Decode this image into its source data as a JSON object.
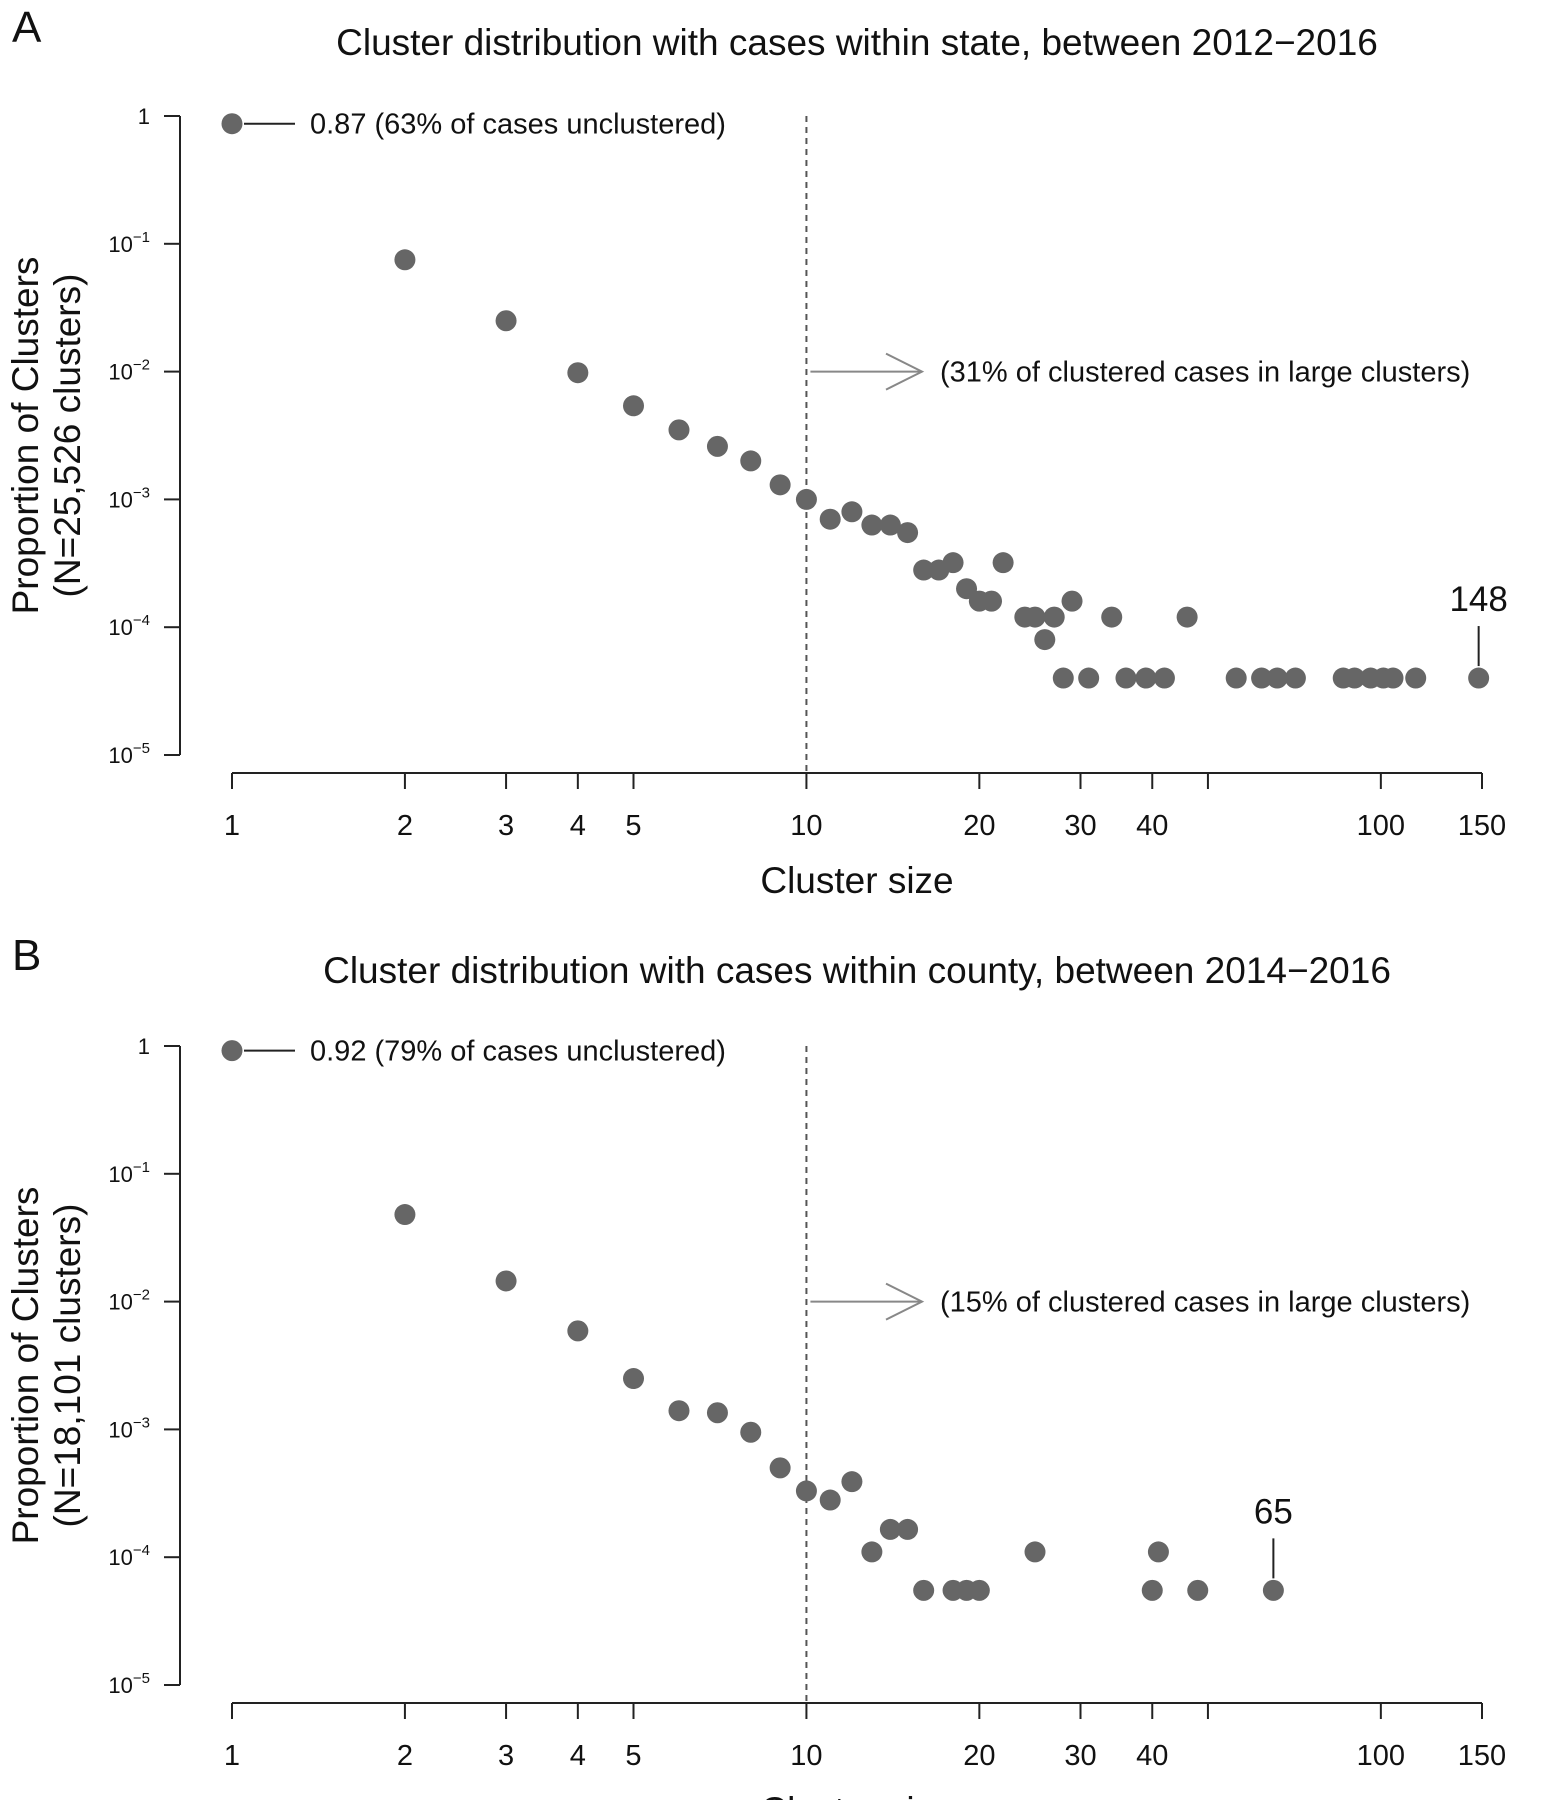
{
  "chart_data": [
    {
      "type": "scatter",
      "panel_letter": "A",
      "title": "Cluster distribution with cases within state, between 2012−2016",
      "xlabel": "Cluster size",
      "ylabel_line1": "Proportion of Clusters",
      "ylabel_line2": "(N=25,526 clusters)",
      "x_scale": "log",
      "y_scale": "log",
      "xlim": [
        1,
        150
      ],
      "ylim": [
        1e-05,
        1
      ],
      "x_ticks": [
        1,
        2,
        3,
        4,
        5,
        10,
        20,
        30,
        40,
        100,
        150
      ],
      "x_tick_labels": [
        "1",
        "2",
        "3",
        "4",
        "5",
        "10",
        "20",
        "30",
        "40",
        "100",
        "150"
      ],
      "x_minor_ticks": [
        50
      ],
      "y_ticks": [
        1,
        0.1,
        0.01,
        0.001,
        0.0001,
        1e-05
      ],
      "y_tick_labels": [
        {
          "base": "1",
          "exp": ""
        },
        {
          "base": "10",
          "exp": "−1"
        },
        {
          "base": "10",
          "exp": "−2"
        },
        {
          "base": "10",
          "exp": "−3"
        },
        {
          "base": "10",
          "exp": "−4"
        },
        {
          "base": "10",
          "exp": "−5"
        }
      ],
      "threshold_x": 10,
      "grid": false,
      "unclustered_annotation": "0.87 (63% of cases unclustered)",
      "large_cluster_annotation": "(31% of clustered cases in large clusters)",
      "max_label": "148",
      "max_label_x": 148,
      "color": "#666666",
      "x": [
        1,
        2,
        3,
        4,
        5,
        6,
        7,
        8,
        9,
        10,
        11,
        12,
        13,
        14,
        15,
        16,
        17,
        18,
        19,
        20,
        21,
        22,
        24,
        25,
        26,
        27,
        28,
        29,
        31,
        34,
        36,
        39,
        42,
        46,
        56,
        62,
        66,
        71,
        86,
        90,
        96,
        101,
        105,
        115,
        148
      ],
      "y": [
        0.87,
        0.075,
        0.025,
        0.0098,
        0.0054,
        0.0035,
        0.0026,
        0.002,
        0.0013,
        0.001,
        0.0007,
        0.0008,
        0.00063,
        0.00063,
        0.00055,
        0.00028,
        0.00028,
        0.00032,
        0.0002,
        0.00016,
        0.00016,
        0.00032,
        0.00012,
        0.00012,
        8e-05,
        0.00012,
        4e-05,
        0.00016,
        4e-05,
        0.00012,
        4e-05,
        4e-05,
        4e-05,
        0.00012,
        4e-05,
        4e-05,
        4e-05,
        4e-05,
        4e-05,
        4e-05,
        4e-05,
        4e-05,
        4e-05,
        4e-05,
        4e-05
      ]
    },
    {
      "type": "scatter",
      "panel_letter": "B",
      "title": "Cluster distribution with cases within county, between 2014−2016",
      "xlabel": "Cluster size",
      "ylabel_line1": "Proportion of Clusters",
      "ylabel_line2": "(N=18,101 clusters)",
      "x_scale": "log",
      "y_scale": "log",
      "xlim": [
        1,
        150
      ],
      "ylim": [
        1e-05,
        1
      ],
      "x_ticks": [
        1,
        2,
        3,
        4,
        5,
        10,
        20,
        30,
        40,
        100,
        150
      ],
      "x_tick_labels": [
        "1",
        "2",
        "3",
        "4",
        "5",
        "10",
        "20",
        "30",
        "40",
        "100",
        "150"
      ],
      "x_minor_ticks": [
        50
      ],
      "y_ticks": [
        1,
        0.1,
        0.01,
        0.001,
        0.0001,
        1e-05
      ],
      "y_tick_labels": [
        {
          "base": "1",
          "exp": ""
        },
        {
          "base": "10",
          "exp": "−1"
        },
        {
          "base": "10",
          "exp": "−2"
        },
        {
          "base": "10",
          "exp": "−3"
        },
        {
          "base": "10",
          "exp": "−4"
        },
        {
          "base": "10",
          "exp": "−5"
        }
      ],
      "threshold_x": 10,
      "grid": false,
      "unclustered_annotation": "0.92 (79% of cases unclustered)",
      "large_cluster_annotation": "(15% of clustered cases in large clusters)",
      "max_label": "65",
      "max_label_x": 65,
      "color": "#666666",
      "x": [
        1,
        2,
        3,
        4,
        5,
        6,
        7,
        8,
        9,
        10,
        11,
        12,
        13,
        14,
        15,
        16,
        18,
        19,
        20,
        25,
        40,
        41,
        48,
        65
      ],
      "y": [
        0.92,
        0.048,
        0.0145,
        0.0059,
        0.0025,
        0.0014,
        0.00135,
        0.00095,
        0.0005,
        0.00033,
        0.00028,
        0.00039,
        0.00011,
        0.000165,
        0.000165,
        5.5e-05,
        5.5e-05,
        5.5e-05,
        5.5e-05,
        0.00011,
        5.5e-05,
        0.00011,
        5.5e-05,
        5.5e-05
      ]
    }
  ]
}
